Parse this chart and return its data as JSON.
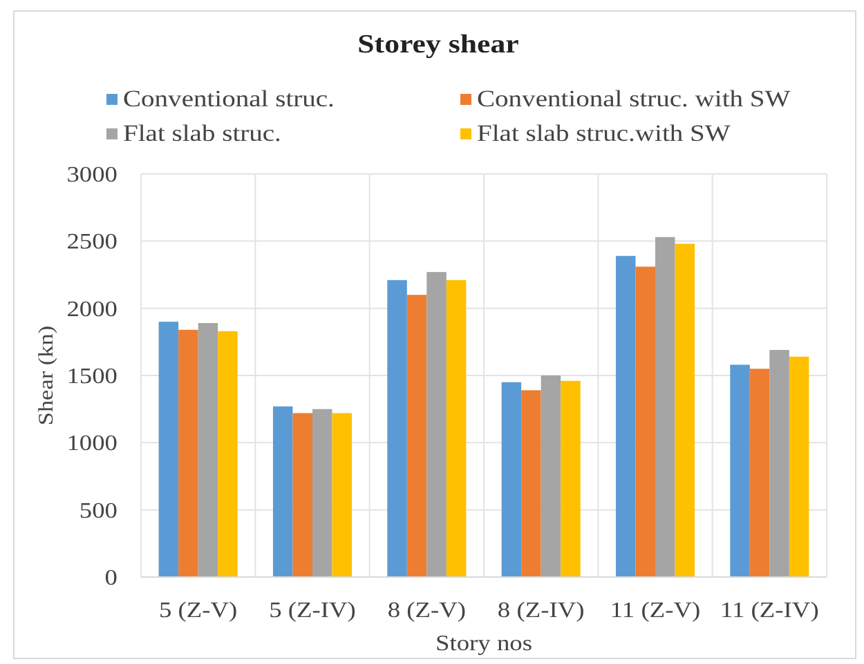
{
  "chart_data": {
    "type": "bar",
    "title": "Storey shear",
    "xlabel": "Story nos",
    "ylabel": "Shear (kn)",
    "categories": [
      "5 (Z-V)",
      "5 (Z-IV)",
      "8 (Z-V)",
      "8 (Z-IV)",
      "11 (Z-V)",
      "11 (Z-IV)"
    ],
    "series": [
      {
        "name": "Conventional struc.",
        "color": "#5b9bd5",
        "values": [
          1900,
          1270,
          2210,
          1450,
          2390,
          1580
        ]
      },
      {
        "name": "Conventional struc. with SW",
        "color": "#ed7d31",
        "values": [
          1840,
          1220,
          2100,
          1390,
          2310,
          1550
        ]
      },
      {
        "name": "Flat slab struc.",
        "color": "#a5a5a5",
        "values": [
          1890,
          1250,
          2270,
          1500,
          2530,
          1690
        ]
      },
      {
        "name": "Flat slab struc.with SW",
        "color": "#ffc000",
        "values": [
          1830,
          1220,
          2210,
          1460,
          2480,
          1640
        ]
      }
    ],
    "ylim": [
      0,
      3000
    ],
    "yticks": [
      0,
      500,
      1000,
      1500,
      2000,
      2500,
      3000
    ],
    "grid": true,
    "legend": "top"
  }
}
